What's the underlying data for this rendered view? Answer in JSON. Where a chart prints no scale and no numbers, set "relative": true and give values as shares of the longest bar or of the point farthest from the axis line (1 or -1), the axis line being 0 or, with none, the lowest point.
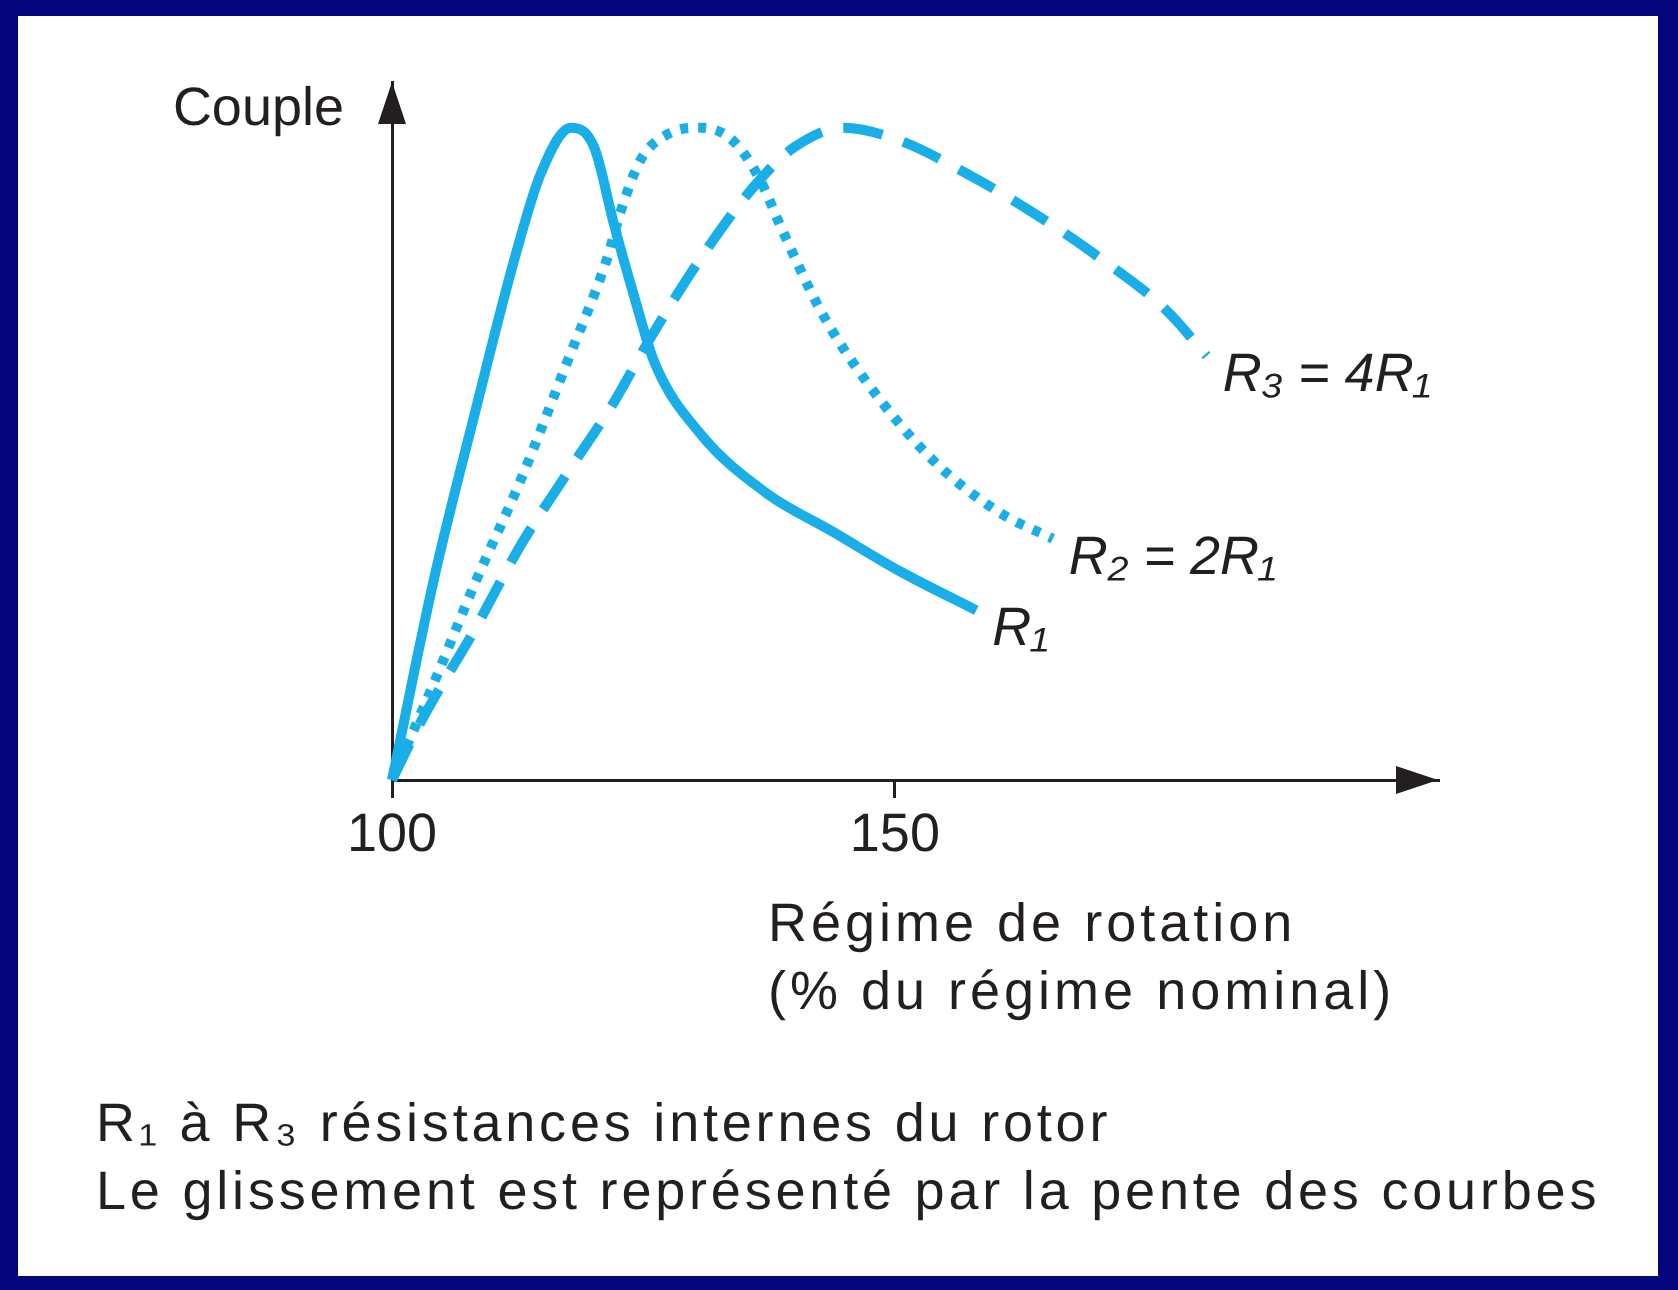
{
  "chart_data": {
    "type": "line",
    "xlabel": "Régime de rotation\n(% du régime nominal)",
    "ylabel": "Couple",
    "annotations": [
      "R₁ à R₃ résistances internes du rotor",
      "Le glissement est représenté par la pente des courbes"
    ],
    "xlim": [
      100,
      204
    ],
    "xticks": [
      100,
      150
    ],
    "relative": true,
    "legend": false,
    "grid": false,
    "tick_labels": "x",
    "marker": "none",
    "series": [
      {
        "name": "R₁",
        "color": "#19aee8",
        "line_style": "solid",
        "x": [
          100,
          104.2,
          108.2,
          112.2,
          114.8,
          117.8,
          120.1,
          122.1,
          124.1,
          126.1,
          130.7,
          137.2,
          143.9,
          150.5,
          158.1
        ],
        "values": [
          0,
          0.31,
          0.56,
          0.8,
          0.93,
          1,
          0.97,
          0.85,
          0.74,
          0.64,
          0.53,
          0.44,
          0.38,
          0.32,
          0.26
        ]
      },
      {
        "name": "R₂ = 2R₁",
        "color": "#19aee8",
        "line_style": "dotted",
        "x": [
          100,
          104.2,
          108.2,
          112.8,
          117.4,
          121.4,
          122.7,
          124.7,
          127.4,
          130.7,
          133.9,
          136.6,
          138.6,
          142.6,
          147.2,
          153.8,
          160.4,
          165.7
        ],
        "values": [
          0,
          0.15,
          0.3,
          0.46,
          0.64,
          0.8,
          0.87,
          0.95,
          0.99,
          1,
          0.98,
          0.92,
          0.85,
          0.72,
          0.61,
          0.49,
          0.41,
          0.37
        ]
      },
      {
        "name": "R₃ = 4R₁",
        "color": "#19aee8",
        "line_style": "dashed",
        "x": [
          100,
          102.9,
          108.2,
          112.8,
          117.4,
          122.1,
          125.4,
          130.7,
          136,
          140,
          144.9,
          150.5,
          157.1,
          163.7,
          170.4,
          177,
          181
        ],
        "values": [
          0,
          0.09,
          0.23,
          0.36,
          0.47,
          0.58,
          0.67,
          0.8,
          0.91,
          0.97,
          1,
          0.98,
          0.93,
          0.87,
          0.8,
          0.72,
          0.65
        ]
      }
    ]
  }
}
